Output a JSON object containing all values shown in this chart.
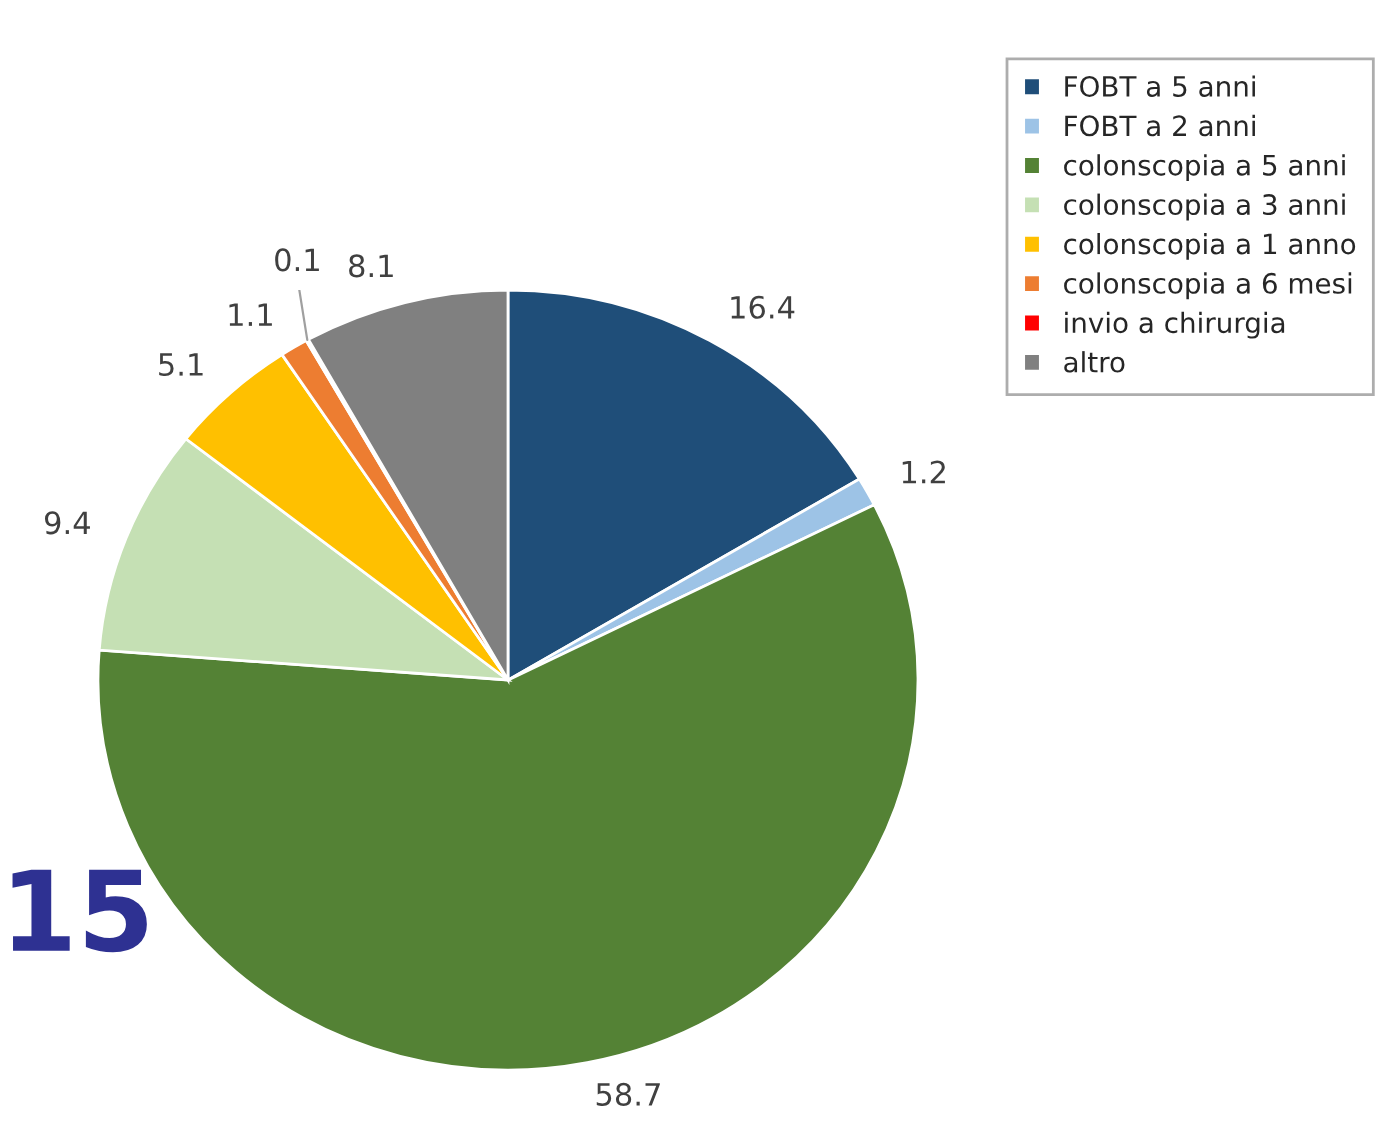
{
  "chart_data": {
    "type": "pie",
    "categories": [
      "FOBT a 5 anni",
      "FOBT a 2 anni",
      "colonscopia a 5 anni",
      "colonscopia a 3 anni",
      "colonscopia a 1 anno",
      "colonscopia a 6 mesi",
      "invio a chirurgia",
      "altro"
    ],
    "values": [
      16.4,
      1.2,
      58.7,
      9.4,
      5.1,
      1.1,
      0.1,
      8.1
    ],
    "colors": [
      "#1f4e79",
      "#9dc3e6",
      "#548235",
      "#c5e0b4",
      "#ffc000",
      "#ed7d31",
      "#ff0000",
      "#808080"
    ],
    "data_labels": true,
    "legend": "top right",
    "annotations": [
      "15"
    ]
  }
}
